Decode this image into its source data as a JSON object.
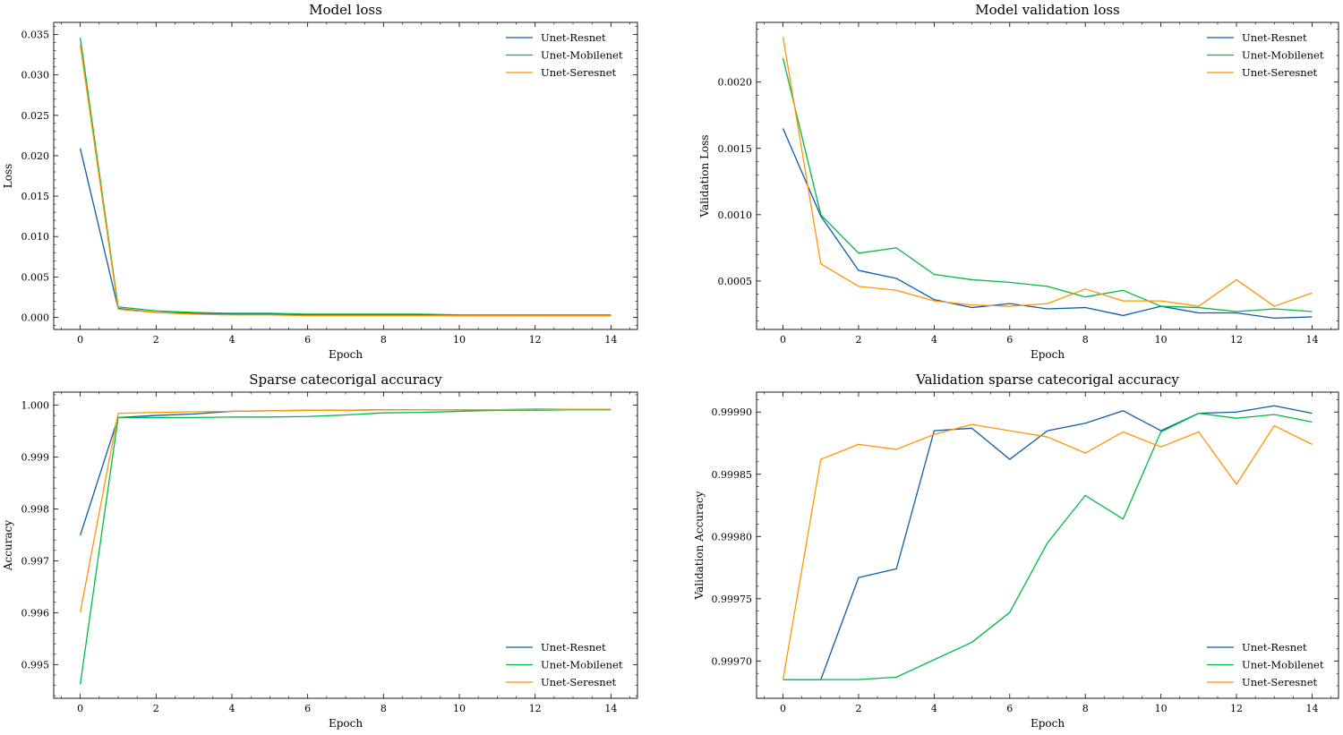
{
  "figure": {
    "panels": 4,
    "layout": "2x2"
  },
  "chart_data": [
    {
      "type": "line",
      "title": "Model loss",
      "xlabel": "Epoch",
      "ylabel": "Loss",
      "xlim": [
        -0.7,
        14.7
      ],
      "ylim": [
        -0.0015,
        0.0365
      ],
      "xticks": [
        0,
        2,
        4,
        6,
        8,
        10,
        12,
        14
      ],
      "xtick_labels": [
        "0",
        "2",
        "4",
        "6",
        "8",
        "10",
        "12",
        "14"
      ],
      "yticks": [
        0.0,
        0.005,
        0.01,
        0.015,
        0.02,
        0.025,
        0.03,
        0.035
      ],
      "ytick_labels": [
        "0.000",
        "0.005",
        "0.010",
        "0.015",
        "0.020",
        "0.025",
        "0.030",
        "0.035"
      ],
      "legend_position": "top-right",
      "x": [
        0,
        1,
        2,
        3,
        4,
        5,
        6,
        7,
        8,
        9,
        10,
        11,
        12,
        13,
        14
      ],
      "series": [
        {
          "name": "Unet-Resnet",
          "color": "#0C5DA5",
          "values": [
            0.0209,
            0.0011,
            0.0006,
            0.0005,
            0.0004,
            0.0004,
            0.0003,
            0.0003,
            0.0003,
            0.0003,
            0.0002,
            0.0002,
            0.0002,
            0.0002,
            0.0002
          ]
        },
        {
          "name": "Unet-Mobilenet",
          "color": "#00B945",
          "values": [
            0.0346,
            0.0013,
            0.0008,
            0.0006,
            0.0005,
            0.0005,
            0.0004,
            0.0004,
            0.0004,
            0.0004,
            0.0003,
            0.0003,
            0.0003,
            0.0003,
            0.0003
          ]
        },
        {
          "name": "Unet-Seresnet",
          "color": "#FF9500",
          "values": [
            0.0337,
            0.001,
            0.0006,
            0.0004,
            0.0003,
            0.0003,
            0.0002,
            0.0002,
            0.0002,
            0.0002,
            0.0002,
            0.0002,
            0.0002,
            0.0002,
            0.0002
          ]
        }
      ]
    },
    {
      "type": "line",
      "title": "Model validation loss",
      "xlabel": "Epoch",
      "ylabel": "Validation Loss",
      "xlim": [
        -0.7,
        14.7
      ],
      "ylim": [
        0.000135,
        0.00245
      ],
      "xticks": [
        0,
        2,
        4,
        6,
        8,
        10,
        12,
        14
      ],
      "xtick_labels": [
        "0",
        "2",
        "4",
        "6",
        "8",
        "10",
        "12",
        "14"
      ],
      "yticks": [
        0.0005,
        0.001,
        0.0015,
        0.002
      ],
      "ytick_labels": [
        "0.0005",
        "0.0010",
        "0.0015",
        "0.0020"
      ],
      "legend_position": "top-right",
      "x": [
        0,
        1,
        2,
        3,
        4,
        5,
        6,
        7,
        8,
        9,
        10,
        11,
        12,
        13,
        14
      ],
      "series": [
        {
          "name": "Unet-Resnet",
          "color": "#0C5DA5",
          "values": [
            0.00165,
            0.00099,
            0.00058,
            0.00052,
            0.00036,
            0.0003,
            0.00033,
            0.00029,
            0.0003,
            0.00024,
            0.00031,
            0.00026,
            0.00026,
            0.00022,
            0.00023
          ]
        },
        {
          "name": "Unet-Mobilenet",
          "color": "#00B945",
          "values": [
            0.00218,
            0.001,
            0.00071,
            0.00075,
            0.00055,
            0.00051,
            0.00049,
            0.00046,
            0.00038,
            0.00043,
            0.00031,
            0.0003,
            0.00027,
            0.00029,
            0.00027
          ]
        },
        {
          "name": "Unet-Seresnet",
          "color": "#FF9500",
          "values": [
            0.00234,
            0.00063,
            0.00046,
            0.00043,
            0.00035,
            0.00032,
            0.00031,
            0.00033,
            0.00044,
            0.00035,
            0.00035,
            0.00031,
            0.00051,
            0.00031,
            0.00041
          ]
        }
      ]
    },
    {
      "type": "line",
      "title": "Sparse catecorigal accuracy",
      "xlabel": "Epoch",
      "ylabel": "Accuracy",
      "xlim": [
        -0.7,
        14.7
      ],
      "ylim": [
        0.99435,
        1.00025
      ],
      "xticks": [
        0,
        2,
        4,
        6,
        8,
        10,
        12,
        14
      ],
      "xtick_labels": [
        "0",
        "2",
        "4",
        "6",
        "8",
        "10",
        "12",
        "14"
      ],
      "yticks": [
        0.995,
        0.996,
        0.997,
        0.998,
        0.999,
        1.0
      ],
      "ytick_labels": [
        "0.995",
        "0.996",
        "0.997",
        "0.998",
        "0.999",
        "1.000"
      ],
      "legend_position": "bottom-right",
      "x": [
        0,
        1,
        2,
        3,
        4,
        5,
        6,
        7,
        8,
        9,
        10,
        11,
        12,
        13,
        14
      ],
      "series": [
        {
          "name": "Unet-Resnet",
          "color": "#0C5DA5",
          "values": [
            0.99749,
            0.99976,
            0.9998,
            0.99983,
            0.99988,
            0.99989,
            0.9999,
            0.9999,
            0.99991,
            0.99991,
            0.99991,
            0.99991,
            0.99992,
            0.99992,
            0.99992
          ]
        },
        {
          "name": "Unet-Mobilenet",
          "color": "#00B945",
          "values": [
            0.99462,
            0.99976,
            0.99976,
            0.99976,
            0.99977,
            0.99977,
            0.99978,
            0.99981,
            0.99985,
            0.99986,
            0.99988,
            0.9999,
            0.9999,
            0.99991,
            0.99991
          ]
        },
        {
          "name": "Unet-Seresnet",
          "color": "#FF9500",
          "values": [
            0.99601,
            0.99984,
            0.99986,
            0.99987,
            0.99988,
            0.99989,
            0.9999,
            0.9999,
            0.99991,
            0.99991,
            0.99991,
            0.99991,
            0.99991,
            0.99992,
            0.99992
          ]
        }
      ]
    },
    {
      "type": "line",
      "title": "Validation sparse catecorigal accuracy",
      "xlabel": "Epoch",
      "ylabel": "Validation Accuracy",
      "xlim": [
        -0.7,
        14.7
      ],
      "ylim": [
        0.99967,
        0.999916
      ],
      "xticks": [
        0,
        2,
        4,
        6,
        8,
        10,
        12,
        14
      ],
      "xtick_labels": [
        "0",
        "2",
        "4",
        "6",
        "8",
        "10",
        "12",
        "14"
      ],
      "yticks": [
        0.9997,
        0.99975,
        0.9998,
        0.99985,
        0.9999
      ],
      "ytick_labels": [
        "0.99970",
        "0.99975",
        "0.99980",
        "0.99985",
        "0.99990"
      ],
      "legend_position": "bottom-right",
      "x": [
        0,
        1,
        2,
        3,
        4,
        5,
        6,
        7,
        8,
        9,
        10,
        11,
        12,
        13,
        14
      ],
      "series": [
        {
          "name": "Unet-Resnet",
          "color": "#0C5DA5",
          "values": [
            0.999685,
            0.999685,
            0.999767,
            0.999774,
            0.999885,
            0.999887,
            0.999862,
            0.999885,
            0.999891,
            0.999901,
            0.999885,
            0.999899,
            0.9999,
            0.999905,
            0.999899
          ]
        },
        {
          "name": "Unet-Mobilenet",
          "color": "#00B945",
          "values": [
            0.999685,
            0.999685,
            0.999685,
            0.999687,
            0.999701,
            0.999715,
            0.999739,
            0.999795,
            0.999833,
            0.999814,
            0.999884,
            0.999899,
            0.999895,
            0.999898,
            0.999892
          ]
        },
        {
          "name": "Unet-Seresnet",
          "color": "#FF9500",
          "values": [
            0.999685,
            0.999862,
            0.999874,
            0.99987,
            0.999882,
            0.99989,
            0.999885,
            0.99988,
            0.999867,
            0.999884,
            0.999872,
            0.999884,
            0.999842,
            0.999889,
            0.999874
          ]
        }
      ]
    }
  ]
}
